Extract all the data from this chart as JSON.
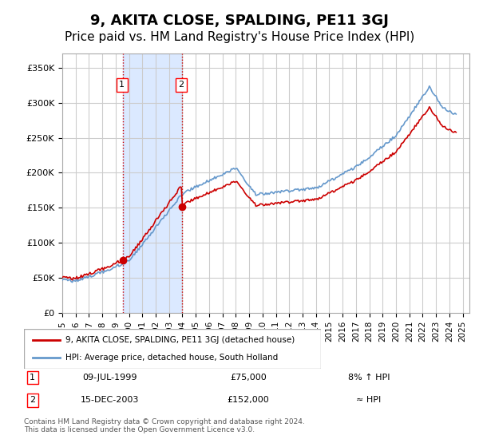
{
  "title": "9, AKITA CLOSE, SPALDING, PE11 3GJ",
  "subtitle": "Price paid vs. HM Land Registry's House Price Index (HPI)",
  "title_fontsize": 13,
  "subtitle_fontsize": 11,
  "ylabel_ticks": [
    "£0",
    "£50K",
    "£100K",
    "£150K",
    "£200K",
    "£250K",
    "£300K",
    "£350K"
  ],
  "ytick_values": [
    0,
    50000,
    100000,
    150000,
    200000,
    250000,
    300000,
    350000
  ],
  "ylim": [
    0,
    370000
  ],
  "xlim_start": 1995.0,
  "xlim_end": 2025.5,
  "sale1_year": 1999.52,
  "sale1_price": 75000,
  "sale2_year": 2003.96,
  "sale2_price": 152000,
  "line_color_red": "#cc0000",
  "line_color_blue": "#6699cc",
  "shade_color": "#cce0ff",
  "grid_color": "#cccccc",
  "background_color": "#ffffff",
  "legend_line1": "9, AKITA CLOSE, SPALDING, PE11 3GJ (detached house)",
  "legend_line2": "HPI: Average price, detached house, South Holland",
  "table_row1_num": "1",
  "table_row1_date": "09-JUL-1999",
  "table_row1_price": "£75,000",
  "table_row1_hpi": "8% ↑ HPI",
  "table_row2_num": "2",
  "table_row2_date": "15-DEC-2003",
  "table_row2_price": "£152,000",
  "table_row2_hpi": "≈ HPI",
  "footnote": "Contains HM Land Registry data © Crown copyright and database right 2024.\nThis data is licensed under the Open Government Licence v3.0.",
  "price_paid_years": [
    1999.52,
    2003.96
  ],
  "price_paid_values": [
    75000,
    152000
  ],
  "xtick_years": [
    1995,
    1996,
    1997,
    1998,
    1999,
    2000,
    2001,
    2002,
    2003,
    2004,
    2005,
    2006,
    2007,
    2008,
    2009,
    2010,
    2011,
    2012,
    2013,
    2014,
    2015,
    2016,
    2017,
    2018,
    2019,
    2020,
    2021,
    2022,
    2023,
    2024,
    2025
  ]
}
